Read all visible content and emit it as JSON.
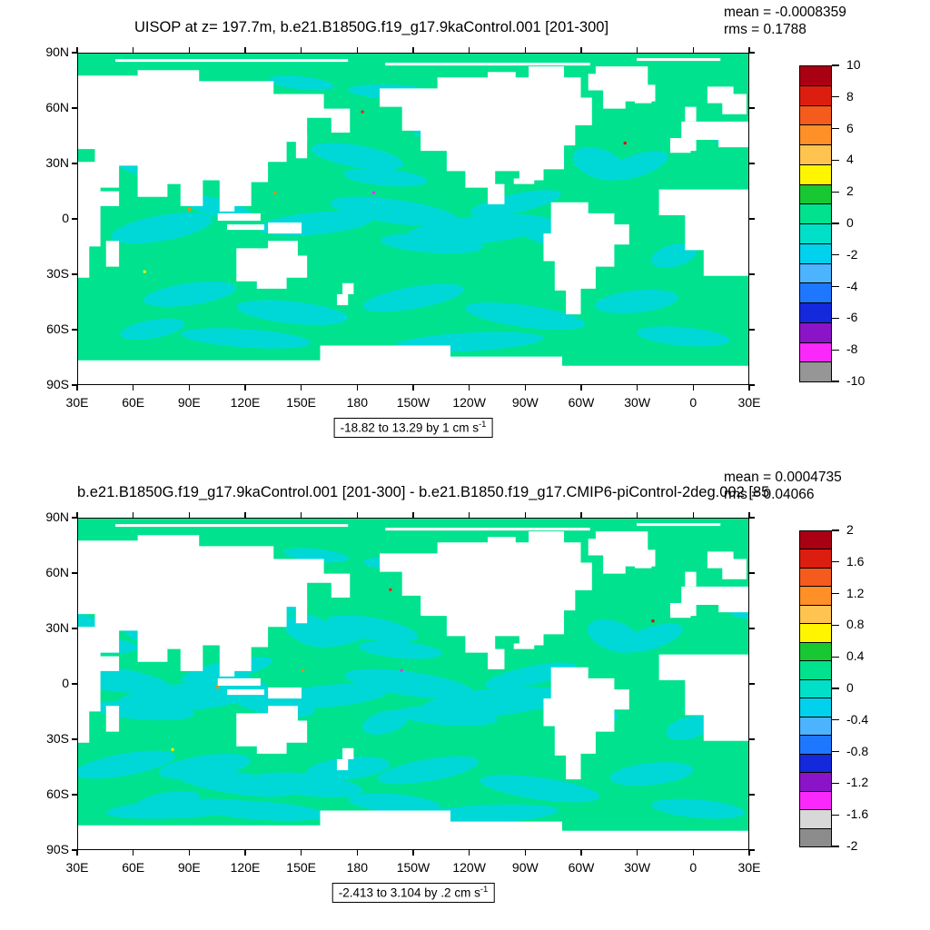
{
  "map_colors": {
    "ocean": "#00e28e",
    "patch": "#00d8d8",
    "land": "#ffffff"
  },
  "plots": [
    {
      "title": "UISOP at z= 197.7m, b.e21.B1850G.f19_g17.9kaControl.001 [201-300]",
      "mean_label": "mean = -0.0008359",
      "rms_label": "rms = 0.1788",
      "range_text": "-18.82 to 13.29 by 1 cm s",
      "range_sup": "-1",
      "lat_ticks": [
        "90N",
        "60N",
        "30N",
        "0",
        "30S",
        "60S",
        "90S"
      ],
      "lon_ticks": [
        "30E",
        "60E",
        "90E",
        "120E",
        "150E",
        "180",
        "150W",
        "120W",
        "90W",
        "60W",
        "30W",
        "0",
        "30E"
      ],
      "colorbar": {
        "tick_labels": [
          "10",
          "8",
          "6",
          "4",
          "2",
          "0",
          "-2",
          "-4",
          "-6",
          "-8",
          "-10"
        ],
        "colors": [
          "#aa0014",
          "#dc1e10",
          "#f65b1e",
          "#fe9027",
          "#fec44f",
          "#fff500",
          "#18c832",
          "#00e28e",
          "#00e0c8",
          "#00d2ee",
          "#4cb4ff",
          "#1e78ff",
          "#1428dc",
          "#8c14c8",
          "#fa28fa",
          "#969696"
        ]
      }
    },
    {
      "title": "b.e21.B1850G.f19_g17.9kaControl.001 [201-300] - b.e21.B1850.f19_g17.CMIP6-piControl-2deg.002 [85",
      "mean_label": "mean = 0.0004735",
      "rms_label": "rms = 0.04066",
      "range_text": "-2.413 to 3.104 by .2 cm s",
      "range_sup": "-1",
      "lat_ticks": [
        "90N",
        "60N",
        "30N",
        "0",
        "30S",
        "60S",
        "90S"
      ],
      "lon_ticks": [
        "30E",
        "60E",
        "90E",
        "120E",
        "150E",
        "180",
        "150W",
        "120W",
        "90W",
        "60W",
        "30W",
        "0",
        "30E"
      ],
      "colorbar": {
        "tick_labels": [
          "2",
          "1.6",
          "1.2",
          "0.8",
          "0.4",
          "0",
          "-0.4",
          "-0.8",
          "-1.2",
          "-1.6",
          "-2"
        ],
        "colors": [
          "#aa0014",
          "#dc1e10",
          "#f65b1e",
          "#fe9027",
          "#fec44f",
          "#fff500",
          "#18c832",
          "#00e28e",
          "#00e0c8",
          "#00d2ee",
          "#4cb4ff",
          "#1e78ff",
          "#1428dc",
          "#8c14c8",
          "#fa28fa",
          "#d8d8d8",
          "#8c8c8c"
        ]
      }
    }
  ],
  "chart_data": [
    {
      "type": "heatmap",
      "title": "UISOP at z= 197.7m, b.e21.B1850G.f19_g17.9kaControl.001 [201-300]",
      "variable": "UISOP",
      "depth_label": "z= 197.7m",
      "case": "b.e21.B1850G.f19_g17.9kaControl.001",
      "time_window": "[201-300]",
      "statistics": {
        "mean": -0.0008359,
        "rms": 0.1788
      },
      "field_range_label": "-18.82 to 13.29 by 1 cm s-1",
      "field_min": -18.82,
      "field_max": 13.29,
      "contour_interval": 1,
      "units": "cm s-1",
      "colorbar_tick_values": [
        10,
        8,
        6,
        4,
        2,
        0,
        -2,
        -4,
        -6,
        -8,
        -10
      ],
      "x_axis": {
        "ticks": [
          "30E",
          "60E",
          "90E",
          "120E",
          "150E",
          "180",
          "150W",
          "120W",
          "90W",
          "60W",
          "30W",
          "0",
          "30E"
        ]
      },
      "y_axis": {
        "ticks": [
          "90N",
          "60N",
          "30N",
          "0",
          "30S",
          "60S",
          "90S"
        ]
      },
      "projection": "global cylindrical map starting at 30E",
      "dominant_values": "ocean mostly 0 to 2 cm/s (green) with patches -2 to 0 (cyan); land masked white; rare small extreme speckles"
    },
    {
      "type": "heatmap",
      "title": "b.e21.B1850G.f19_g17.9kaControl.001 [201-300] - b.e21.B1850.f19_g17.CMIP6-piControl-2deg.002 [85",
      "statistics": {
        "mean": 0.0004735,
        "rms": 0.04066
      },
      "field_range_label": "-2.413 to 3.104 by .2 cm s-1",
      "field_min": -2.413,
      "field_max": 3.104,
      "contour_interval": 0.2,
      "units": "cm s-1",
      "colorbar_tick_values": [
        2,
        1.6,
        1.2,
        0.8,
        0.4,
        0,
        -0.4,
        -0.8,
        -1.2,
        -1.6,
        -2
      ],
      "x_axis": {
        "ticks": [
          "30E",
          "60E",
          "90E",
          "120E",
          "150E",
          "180",
          "150W",
          "120W",
          "90W",
          "60W",
          "30W",
          "0",
          "30E"
        ]
      },
      "y_axis": {
        "ticks": [
          "90N",
          "60N",
          "30N",
          "0",
          "30S",
          "60S",
          "90S"
        ]
      },
      "projection": "global cylindrical map starting at 30E",
      "dominant_values": "difference field mostly near 0 (green/cyan); land masked white; rare small extreme speckles"
    }
  ]
}
